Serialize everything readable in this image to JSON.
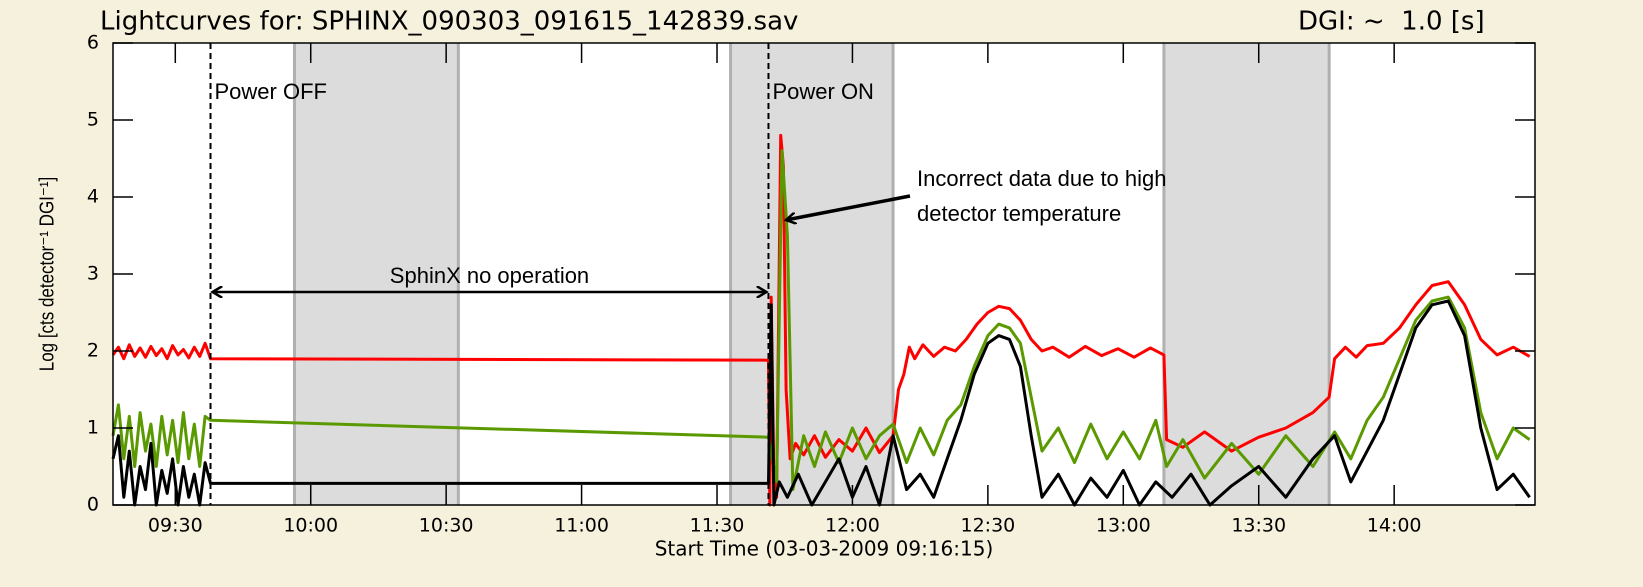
{
  "chart_data": {
    "type": "line",
    "title": "Lightcurves for: SPHINX_090303_091615_142839.sav",
    "subtitle": "DGI: ~  1.0 [s]",
    "x_label": "Start Time (03-03-2009 09:16:15)",
    "y_label": "Log [cts detector⁻¹ DGI⁻¹]",
    "xlim": [
      9.27,
      14.52
    ],
    "ylim": [
      0,
      6
    ],
    "yticks": [
      0,
      1,
      2,
      3,
      4,
      5,
      6
    ],
    "xticks": [
      {
        "value": 9.5,
        "label": "09:30"
      },
      {
        "value": 10,
        "label": "10:00"
      },
      {
        "value": 10.5,
        "label": "10:30"
      },
      {
        "value": 11,
        "label": "11:00"
      },
      {
        "value": 11.5,
        "label": "11:30"
      },
      {
        "value": 12,
        "label": "12:00"
      },
      {
        "value": 12.5,
        "label": "12:30"
      },
      {
        "value": 13,
        "label": "13:00"
      },
      {
        "value": 13.5,
        "label": "13:30"
      },
      {
        "value": 14,
        "label": "14:00"
      }
    ],
    "shaded_intervals": [
      [
        9.94,
        10.545
      ],
      [
        11.55,
        12.15
      ],
      [
        13.15,
        13.76
      ]
    ],
    "shade_color": "#dcdcdc",
    "vlines": [
      9.63,
      11.69
    ],
    "annotations": [
      "Power OFF",
      "Power ON",
      "Incorrect data due to high",
      "detector temperature",
      "SphinX no operation"
    ],
    "series": [
      {
        "color": "#ff0000",
        "x": [
          9.27,
          9.29,
          9.31,
          9.33,
          9.35,
          9.37,
          9.39,
          9.41,
          9.43,
          9.45,
          9.47,
          9.49,
          9.51,
          9.53,
          9.55,
          9.57,
          9.59,
          9.61,
          9.63,
          11.69,
          11.695,
          11.7,
          11.71,
          11.72,
          11.735,
          11.745,
          11.755,
          11.77,
          11.79,
          11.82,
          11.86,
          11.9,
          11.95,
          12.0,
          12.05,
          12.1,
          12.15,
          12.17,
          12.19,
          12.21,
          12.23,
          12.26,
          12.3,
          12.34,
          12.38,
          12.42,
          12.46,
          12.5,
          12.54,
          12.58,
          12.62,
          12.66,
          12.7,
          12.74,
          12.8,
          12.86,
          12.92,
          12.98,
          13.04,
          13.1,
          13.15,
          13.16,
          13.22,
          13.3,
          13.4,
          13.5,
          13.6,
          13.7,
          13.76,
          13.78,
          13.82,
          13.86,
          13.9,
          13.96,
          14.02,
          14.08,
          14.14,
          14.2,
          14.26,
          14.32,
          14.38,
          14.44,
          14.5
        ],
        "values": [
          1.95,
          2.05,
          1.9,
          2.08,
          1.93,
          2.04,
          1.92,
          2.06,
          1.94,
          2.03,
          1.9,
          2.07,
          1.95,
          2.02,
          1.91,
          2.05,
          1.93,
          2.1,
          1.9,
          1.88,
          0,
          2.7,
          0.3,
          0.1,
          4.8,
          4.4,
          1.5,
          0.6,
          0.8,
          0.65,
          0.9,
          0.62,
          0.85,
          0.7,
          1.0,
          0.68,
          0.9,
          1.5,
          1.7,
          2.05,
          1.9,
          2.08,
          1.93,
          2.05,
          2.0,
          2.15,
          2.35,
          2.5,
          2.58,
          2.55,
          2.4,
          2.15,
          2.0,
          2.05,
          1.92,
          2.06,
          1.94,
          2.03,
          1.92,
          2.04,
          1.95,
          0.85,
          0.75,
          0.95,
          0.7,
          0.88,
          1.0,
          1.2,
          1.4,
          1.9,
          2.05,
          1.92,
          2.07,
          2.1,
          2.3,
          2.6,
          2.85,
          2.9,
          2.6,
          2.15,
          1.95,
          2.05,
          1.93
        ]
      },
      {
        "color": "#5a9a00",
        "x": [
          9.27,
          9.29,
          9.31,
          9.33,
          9.35,
          9.37,
          9.39,
          9.41,
          9.43,
          9.45,
          9.47,
          9.49,
          9.51,
          9.53,
          9.55,
          9.57,
          9.59,
          9.61,
          9.63,
          11.69,
          11.72,
          11.74,
          11.76,
          11.78,
          11.82,
          11.86,
          11.9,
          11.95,
          12.0,
          12.05,
          12.1,
          12.15,
          12.2,
          12.25,
          12.3,
          12.35,
          12.4,
          12.45,
          12.5,
          12.54,
          12.58,
          12.62,
          12.66,
          12.7,
          12.76,
          12.82,
          12.88,
          12.94,
          13.0,
          13.06,
          13.12,
          13.16,
          13.22,
          13.3,
          13.4,
          13.5,
          13.6,
          13.7,
          13.78,
          13.84,
          13.9,
          13.96,
          14.02,
          14.08,
          14.14,
          14.2,
          14.26,
          14.32,
          14.38,
          14.44,
          14.5
        ],
        "values": [
          0.9,
          1.3,
          0.6,
          1.15,
          0.5,
          1.2,
          0.7,
          1.05,
          0.5,
          1.15,
          0.65,
          1.1,
          0.55,
          1.2,
          0.6,
          1.05,
          0.5,
          1.15,
          1.1,
          0.88,
          0.3,
          4.6,
          3.5,
          0.2,
          0.9,
          0.5,
          0.95,
          0.55,
          1.0,
          0.6,
          0.9,
          1.05,
          0.55,
          1.0,
          0.65,
          1.1,
          1.3,
          1.8,
          2.2,
          2.35,
          2.3,
          2.1,
          1.4,
          0.7,
          1.0,
          0.55,
          1.05,
          0.6,
          0.95,
          0.6,
          1.1,
          0.5,
          0.85,
          0.35,
          0.8,
          0.4,
          0.9,
          0.5,
          0.95,
          0.6,
          1.1,
          1.4,
          1.9,
          2.4,
          2.65,
          2.7,
          2.3,
          1.2,
          0.6,
          1.0,
          0.85
        ]
      },
      {
        "color": "#000000",
        "x": [
          9.27,
          9.29,
          9.31,
          9.33,
          9.35,
          9.37,
          9.39,
          9.41,
          9.43,
          9.45,
          9.47,
          9.49,
          9.51,
          9.53,
          9.55,
          9.57,
          9.59,
          9.61,
          9.63,
          11.69,
          11.7,
          11.71,
          11.73,
          11.76,
          11.8,
          11.85,
          11.9,
          11.95,
          12.0,
          12.05,
          12.1,
          12.15,
          12.2,
          12.25,
          12.3,
          12.35,
          12.4,
          12.45,
          12.5,
          12.54,
          12.58,
          12.62,
          12.66,
          12.7,
          12.76,
          12.82,
          12.88,
          12.94,
          13.0,
          13.06,
          13.12,
          13.18,
          13.25,
          13.32,
          13.4,
          13.5,
          13.6,
          13.7,
          13.78,
          13.84,
          13.9,
          13.96,
          14.02,
          14.08,
          14.14,
          14.2,
          14.26,
          14.32,
          14.38,
          14.44,
          14.5
        ],
        "values": [
          0.6,
          0.9,
          0.1,
          0.7,
          0,
          0.5,
          0.2,
          0.8,
          0,
          0.45,
          0.15,
          0.6,
          0,
          0.5,
          0.1,
          0.4,
          0,
          0.55,
          0.28,
          0.28,
          2.6,
          0,
          0.3,
          0.1,
          0.4,
          0,
          0.3,
          0.6,
          0.1,
          0.5,
          0,
          0.9,
          0.2,
          0.4,
          0.1,
          0.6,
          1.1,
          1.7,
          2.1,
          2.2,
          2.15,
          1.8,
          0.9,
          0.1,
          0.4,
          0,
          0.35,
          0.1,
          0.45,
          0,
          0.3,
          0.1,
          0.4,
          0,
          0.25,
          0.5,
          0.1,
          0.6,
          0.9,
          0.3,
          0.7,
          1.1,
          1.7,
          2.3,
          2.6,
          2.65,
          2.2,
          1.0,
          0.2,
          0.4,
          0.1
        ]
      }
    ]
  }
}
